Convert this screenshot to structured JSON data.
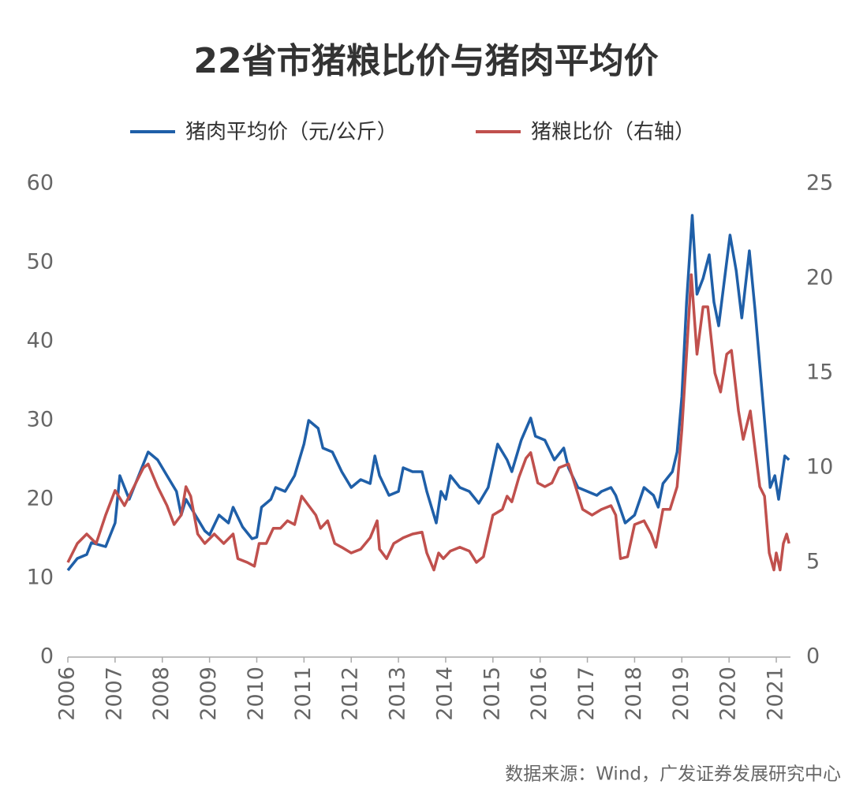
{
  "chart_data": {
    "type": "line",
    "title": "22省市猪粮比价与猪肉平均价",
    "source": "数据来源：Wind，广发证券发展研究中心",
    "xlim": [
      2006,
      2021.3
    ],
    "xticks": [
      2006,
      2007,
      2008,
      2009,
      2010,
      2011,
      2012,
      2013,
      2014,
      2015,
      2016,
      2017,
      2018,
      2019,
      2020,
      2021
    ],
    "ylim": [
      0,
      60
    ],
    "yticks": [
      0,
      10,
      20,
      30,
      40,
      50,
      60
    ],
    "y2lim": [
      0,
      25
    ],
    "y2ticks": [
      0,
      5,
      10,
      15,
      20,
      25
    ],
    "series": [
      {
        "name": "猪肉平均价（元/公斤）",
        "color": "#1f5fa8",
        "x": [
          2006.0,
          2006.2,
          2006.4,
          2006.5,
          2006.8,
          2007.0,
          2007.1,
          2007.3,
          2007.5,
          2007.7,
          2007.9,
          2008.1,
          2008.3,
          2008.4,
          2008.5,
          2008.7,
          2008.9,
          2009.0,
          2009.2,
          2009.4,
          2009.5,
          2009.7,
          2009.9,
          2010.0,
          2010.1,
          2010.3,
          2010.4,
          2010.6,
          2010.8,
          2011.0,
          2011.1,
          2011.3,
          2011.4,
          2011.6,
          2011.8,
          2012.0,
          2012.2,
          2012.4,
          2012.5,
          2012.6,
          2012.8,
          2013.0,
          2013.1,
          2013.3,
          2013.5,
          2013.6,
          2013.8,
          2013.9,
          2014.0,
          2014.1,
          2014.3,
          2014.5,
          2014.7,
          2014.9,
          2015.1,
          2015.3,
          2015.4,
          2015.6,
          2015.8,
          2015.9,
          2016.1,
          2016.3,
          2016.5,
          2016.6,
          2016.8,
          2017.0,
          2017.2,
          2017.3,
          2017.5,
          2017.6,
          2017.8,
          2018.0,
          2018.2,
          2018.4,
          2018.5,
          2018.6,
          2018.8,
          2018.9,
          2019.0,
          2019.1,
          2019.22,
          2019.32,
          2019.45,
          2019.58,
          2019.68,
          2019.78,
          2020.02,
          2020.15,
          2020.27,
          2020.43,
          2020.55,
          2020.75,
          2020.87,
          2020.97,
          2021.05,
          2021.18,
          2021.27
        ],
        "values": [
          11,
          12.5,
          13,
          14.5,
          14,
          17,
          23,
          20,
          23,
          26,
          25,
          23,
          21,
          18,
          20,
          18,
          16,
          15.5,
          18,
          17,
          19,
          16.5,
          15,
          15.2,
          19,
          20,
          21.5,
          21,
          23,
          27,
          30,
          29,
          26.5,
          26,
          23.5,
          21.5,
          22.5,
          22,
          25.5,
          23,
          20.5,
          21,
          24,
          23.5,
          23.5,
          21,
          17,
          21,
          20,
          23,
          21.5,
          21,
          19.5,
          21.5,
          27,
          25,
          23.5,
          27.5,
          30.3,
          28,
          27.5,
          25,
          26.5,
          24,
          21.5,
          21,
          20.5,
          21,
          21.5,
          20.5,
          17,
          18,
          21.5,
          20.5,
          19,
          22,
          23.5,
          26,
          33,
          45,
          56,
          46,
          48,
          51,
          45,
          42,
          53.5,
          49,
          43,
          51.5,
          44,
          30,
          21.5,
          23,
          20,
          25.5,
          25
        ]
      },
      {
        "name": "猪粮比价（右轴）",
        "color": "#c0504d",
        "axis": "y2",
        "x": [
          2006.0,
          2006.2,
          2006.4,
          2006.6,
          2006.8,
          2007.0,
          2007.2,
          2007.4,
          2007.6,
          2007.7,
          2007.9,
          2008.1,
          2008.25,
          2008.4,
          2008.5,
          2008.6,
          2008.75,
          2008.9,
          2009.1,
          2009.3,
          2009.5,
          2009.6,
          2009.8,
          2009.95,
          2010.05,
          2010.2,
          2010.35,
          2010.5,
          2010.65,
          2010.8,
          2010.95,
          2011.1,
          2011.25,
          2011.35,
          2011.5,
          2011.65,
          2011.8,
          2012.0,
          2012.2,
          2012.4,
          2012.55,
          2012.6,
          2012.75,
          2012.9,
          2013.1,
          2013.3,
          2013.5,
          2013.6,
          2013.75,
          2013.85,
          2013.95,
          2014.1,
          2014.3,
          2014.5,
          2014.65,
          2014.8,
          2015.0,
          2015.2,
          2015.3,
          2015.4,
          2015.55,
          2015.7,
          2015.8,
          2015.95,
          2016.1,
          2016.25,
          2016.4,
          2016.6,
          2016.75,
          2016.9,
          2017.1,
          2017.3,
          2017.5,
          2017.6,
          2017.7,
          2017.85,
          2018.0,
          2018.2,
          2018.35,
          2018.45,
          2018.6,
          2018.75,
          2018.9,
          2019.0,
          2019.1,
          2019.2,
          2019.32,
          2019.45,
          2019.55,
          2019.7,
          2019.82,
          2019.95,
          2020.05,
          2020.2,
          2020.3,
          2020.45,
          2020.55,
          2020.65,
          2020.75,
          2020.85,
          2020.95,
          2021.0,
          2021.08,
          2021.15,
          2021.22,
          2021.27
        ],
        "values": [
          5,
          6,
          6.5,
          6,
          7.5,
          8.8,
          8,
          9,
          10,
          10.2,
          9,
          8,
          7,
          7.5,
          9,
          8.5,
          6.5,
          6,
          6.5,
          6,
          6.5,
          5.2,
          5,
          4.8,
          6,
          6,
          6.8,
          6.8,
          7.2,
          7,
          8.5,
          8,
          7.5,
          6.8,
          7.2,
          6,
          5.8,
          5.5,
          5.7,
          6.3,
          7.2,
          5.7,
          5.2,
          6,
          6.3,
          6.5,
          6.6,
          5.5,
          4.6,
          5.5,
          5.2,
          5.6,
          5.8,
          5.6,
          5,
          5.3,
          7.5,
          7.8,
          8.5,
          8.2,
          9.5,
          10.5,
          10.8,
          9.2,
          9,
          9.2,
          10,
          10.2,
          9,
          7.8,
          7.5,
          7.8,
          8,
          7.5,
          5.2,
          5.3,
          7,
          7.2,
          6.5,
          5.8,
          7.8,
          7.8,
          9,
          12,
          16,
          20.2,
          16,
          18.5,
          18.5,
          15,
          14,
          16,
          16.2,
          13,
          11.5,
          13,
          11,
          9,
          8.5,
          5.5,
          4.6,
          5.5,
          4.6,
          6,
          6.5,
          6
        ]
      }
    ]
  }
}
